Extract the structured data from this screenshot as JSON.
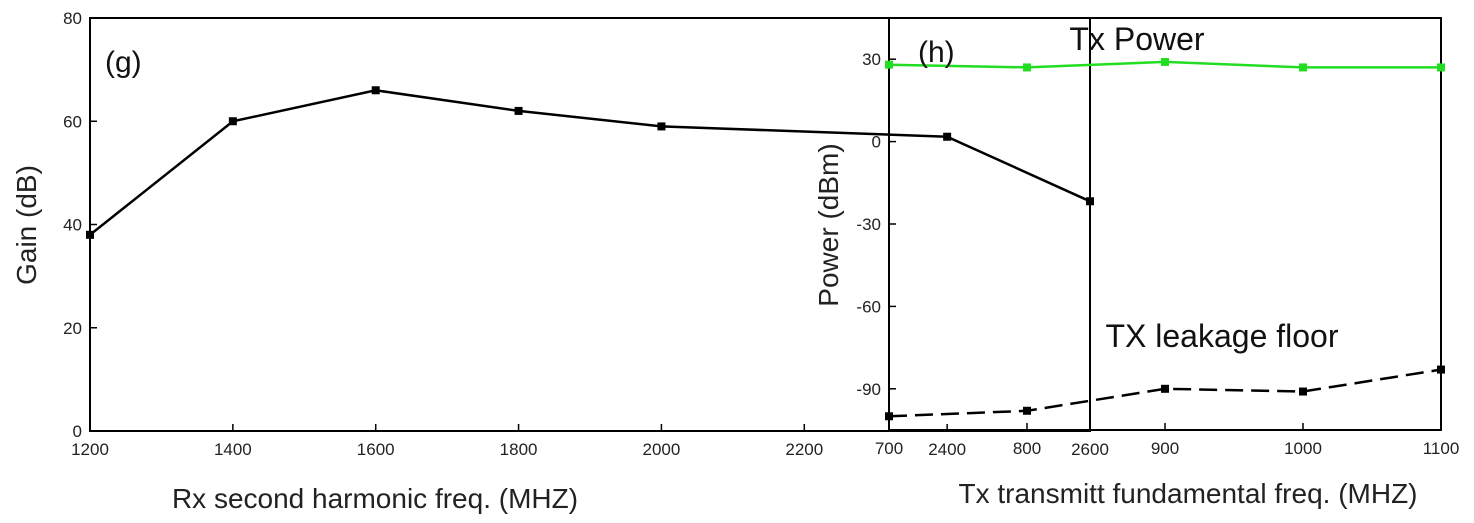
{
  "chart_data": [
    {
      "type": "line",
      "panel_label": "(g)",
      "xlabel": "Rx second harmonic freq. (MHZ)",
      "ylabel": "Gain (dB)",
      "xlim": [
        1200,
        2600
      ],
      "ylim": [
        0,
        80
      ],
      "xticks": [
        1200,
        1400,
        1600,
        1800,
        2000,
        2200,
        2400,
        2600
      ],
      "yticks": [
        0,
        20,
        40,
        60,
        80
      ],
      "series": [
        {
          "color": "#000000",
          "line_style": "solid",
          "marker": "square",
          "x": [
            1200,
            1400,
            1600,
            1800,
            2000,
            2400,
            2600
          ],
          "y": [
            38,
            60,
            66,
            62,
            59,
            57,
            44.5
          ]
        }
      ],
      "grid": false,
      "legend": "none"
    },
    {
      "type": "line",
      "panel_label": "(h)",
      "xlabel": "Tx transmitt fundamental freq. (MHZ)",
      "ylabel": "Power (dBm)",
      "xlim": [
        700,
        1100
      ],
      "ylim": [
        -105,
        45
      ],
      "xticks": [
        700,
        800,
        900,
        1000,
        1100
      ],
      "yticks": [
        -90,
        -60,
        -30,
        0,
        30
      ],
      "series": [
        {
          "name": "Tx Power",
          "color": "#22dd22",
          "line_style": "solid",
          "marker": "square",
          "x": [
            700,
            800,
            900,
            1000,
            1100
          ],
          "y": [
            28,
            27,
            29,
            27,
            27
          ]
        },
        {
          "name": "TX leakage floor",
          "color": "#000000",
          "line_style": "dashed",
          "marker": "square",
          "x": [
            700,
            800,
            900,
            1000,
            1100
          ],
          "y": [
            -100,
            -98,
            -90,
            -91,
            -83
          ]
        }
      ],
      "annotations": [
        "Tx Power",
        "TX leakage floor"
      ],
      "grid": false,
      "legend": "none"
    }
  ]
}
